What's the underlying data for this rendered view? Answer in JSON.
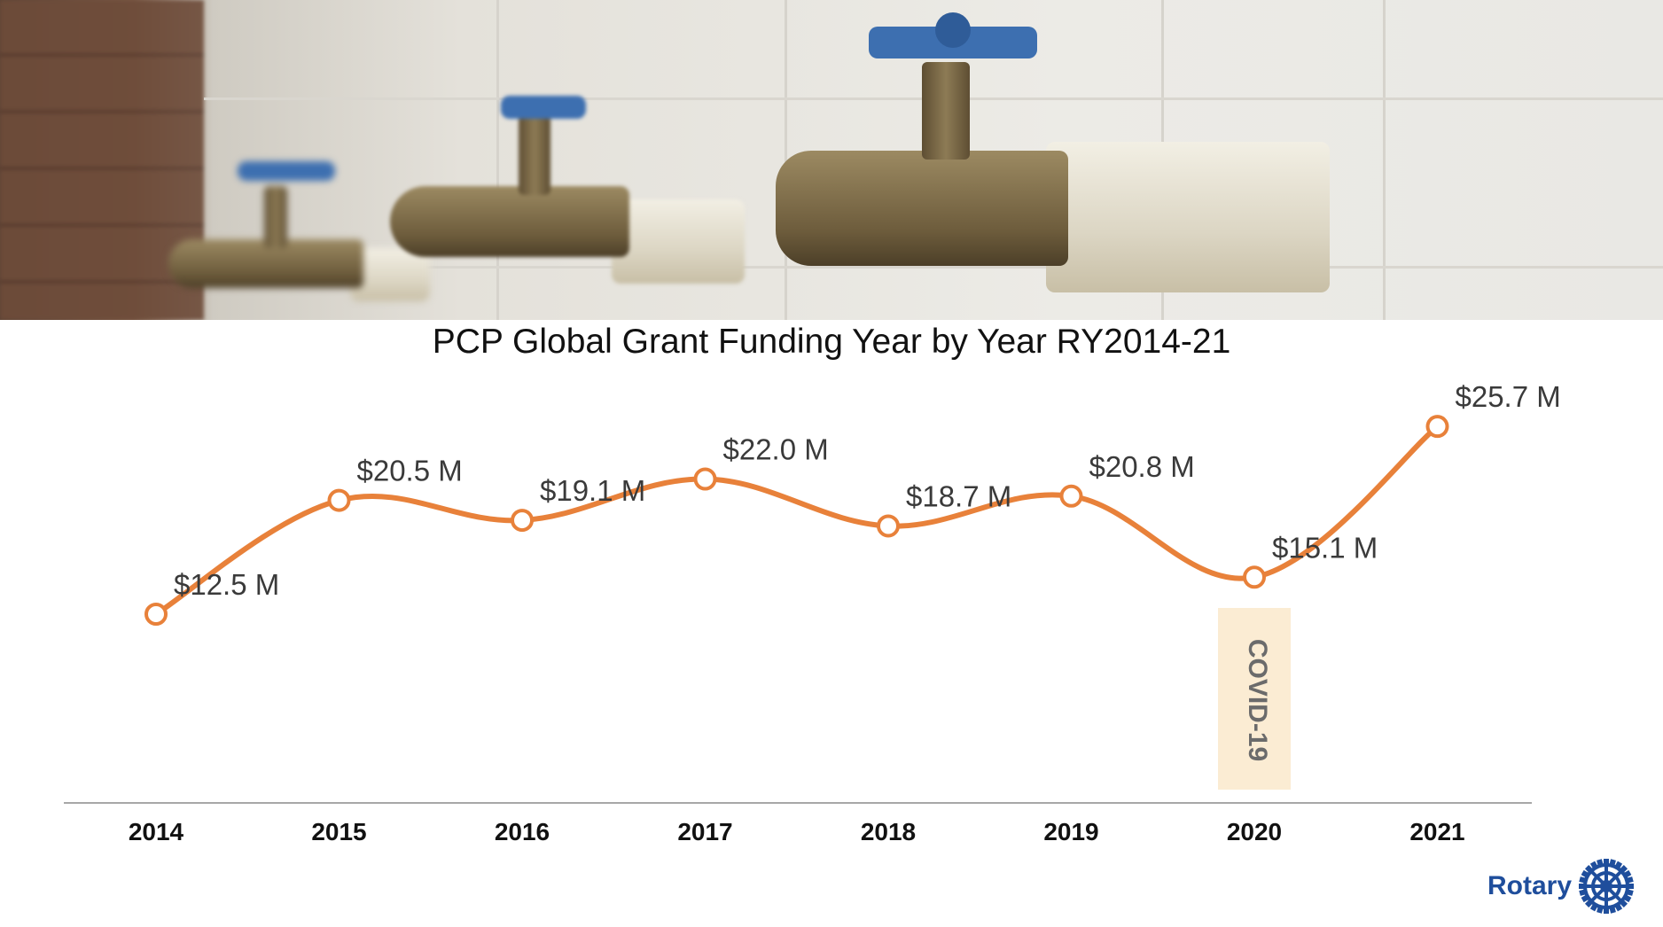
{
  "chart_data": {
    "type": "line",
    "title": "PCP Global Grant Funding Year by Year RY2014-21",
    "categories": [
      "2014",
      "2015",
      "2016",
      "2017",
      "2018",
      "2019",
      "2020",
      "2021"
    ],
    "series": [
      {
        "values": [
          12.5,
          20.5,
          19.1,
          22.0,
          18.7,
          20.8,
          15.1,
          25.7
        ],
        "labels": [
          "$12.5 M",
          "$20.5 M",
          "$19.1 M",
          "$22.0 M",
          "$18.7 M",
          "$20.8 M",
          "$15.1 M",
          "$25.7 M"
        ],
        "color": "#e8813a"
      }
    ],
    "annotations": [
      {
        "text": "COVID-19",
        "category": "2020",
        "background": "#fbecd3"
      }
    ],
    "xlabel": "",
    "ylabel": "",
    "grid": false,
    "smooth": true
  },
  "logo": {
    "text": "Rotary",
    "color": "#1f4e9c"
  },
  "banner": {
    "subject": "row of water faucets photo"
  }
}
